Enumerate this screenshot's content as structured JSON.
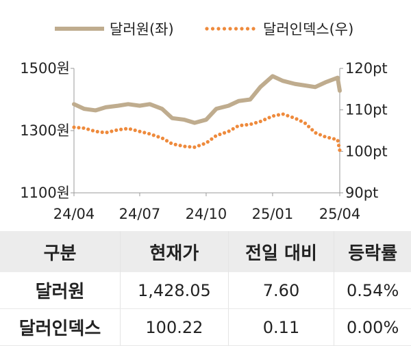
{
  "chart_data": {
    "type": "line",
    "legend": {
      "placement": "top-center"
    },
    "x_ticks": [
      "24/04",
      "24/07",
      "24/10",
      "25/01",
      "25/04"
    ],
    "y_left": {
      "ticks": [
        "1500원",
        "1300원",
        "1100원"
      ],
      "values": [
        1500,
        1300,
        1100
      ],
      "ylim": [
        1100,
        1500
      ]
    },
    "y_right": {
      "ticks": [
        "120pt",
        "110pt",
        "100pt",
        "90pt"
      ],
      "values": [
        120,
        110,
        100,
        90
      ],
      "ylim": [
        90,
        120
      ]
    },
    "grid": false,
    "series": [
      {
        "name": "달러원(좌)",
        "axis": "left",
        "style": "solid",
        "color": "#bfac8e",
        "x": [
          "2024-04-01",
          "2024-04-15",
          "2024-05-01",
          "2024-05-15",
          "2024-06-01",
          "2024-06-15",
          "2024-07-01",
          "2024-07-15",
          "2024-08-01",
          "2024-08-15",
          "2024-09-01",
          "2024-09-15",
          "2024-10-01",
          "2024-10-15",
          "2024-11-01",
          "2024-11-15",
          "2024-12-01",
          "2024-12-15",
          "2025-01-01",
          "2025-01-15",
          "2025-02-01",
          "2025-02-15",
          "2025-03-01",
          "2025-03-15",
          "2025-04-01",
          "2025-04-04"
        ],
        "values": [
          1385,
          1370,
          1365,
          1375,
          1380,
          1385,
          1380,
          1385,
          1370,
          1340,
          1335,
          1325,
          1335,
          1370,
          1380,
          1395,
          1400,
          1440,
          1475,
          1460,
          1450,
          1445,
          1440,
          1455,
          1470,
          1428.05
        ]
      },
      {
        "name": "달러인덱스(우)",
        "axis": "right",
        "style": "dotted",
        "color": "#ee8a3c",
        "x": [
          "2024-04-01",
          "2024-04-15",
          "2024-05-01",
          "2024-05-15",
          "2024-06-01",
          "2024-06-15",
          "2024-07-01",
          "2024-07-15",
          "2024-08-01",
          "2024-08-15",
          "2024-09-01",
          "2024-09-15",
          "2024-10-01",
          "2024-10-15",
          "2024-11-01",
          "2024-11-15",
          "2024-12-01",
          "2024-12-15",
          "2025-01-01",
          "2025-01-15",
          "2025-02-01",
          "2025-02-15",
          "2025-03-01",
          "2025-03-15",
          "2025-04-01",
          "2025-04-04"
        ],
        "values": [
          105.8,
          105.6,
          104.8,
          104.5,
          105.2,
          105.5,
          104.8,
          104.2,
          103.2,
          101.8,
          101.2,
          101.0,
          102.0,
          103.8,
          104.8,
          106.2,
          106.5,
          107.2,
          108.5,
          109.0,
          108.0,
          106.8,
          104.5,
          103.5,
          102.8,
          100.22
        ]
      }
    ]
  },
  "table": {
    "headers": [
      "구분",
      "현재가",
      "전일 대비",
      "등락률"
    ],
    "rows": [
      [
        "달러원",
        "1,428.05",
        "7.60",
        "0.54%"
      ],
      [
        "달러인덱스",
        "100.22",
        "0.11",
        "0.00%"
      ]
    ]
  }
}
